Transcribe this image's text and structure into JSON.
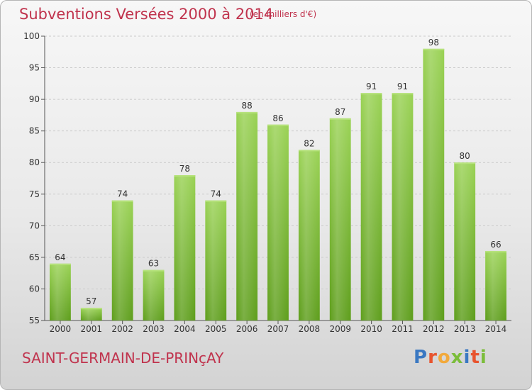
{
  "header": {
    "title": "Subventions Versées 2000 à 2014",
    "units": "(en milliers d'€)"
  },
  "footer": {
    "commune": "SAINT-GERMAIN-DE-PRINçAY",
    "logo_text": "Proxiti",
    "logo_colors": [
      "#3a78c2",
      "#e8542e",
      "#f2a93b",
      "#7bbd3a",
      "#3a78c2",
      "#e8542e",
      "#7bbd3a"
    ]
  },
  "chart_data": {
    "type": "bar",
    "categories": [
      "2000",
      "2001",
      "2002",
      "2003",
      "2004",
      "2005",
      "2006",
      "2007",
      "2008",
      "2009",
      "2010",
      "2011",
      "2012",
      "2013",
      "2014"
    ],
    "values": [
      64,
      57,
      74,
      63,
      78,
      74,
      88,
      86,
      82,
      87,
      91,
      91,
      98,
      80,
      66
    ],
    "title": "Subventions Versées 2000 à 2014",
    "ylim": [
      55,
      100
    ],
    "yticks": [
      55,
      60,
      65,
      70,
      75,
      80,
      85,
      90,
      95,
      100
    ],
    "grid": true,
    "bar_color": "#7cc03a",
    "bar_color_dark": "#5e9e1c"
  }
}
